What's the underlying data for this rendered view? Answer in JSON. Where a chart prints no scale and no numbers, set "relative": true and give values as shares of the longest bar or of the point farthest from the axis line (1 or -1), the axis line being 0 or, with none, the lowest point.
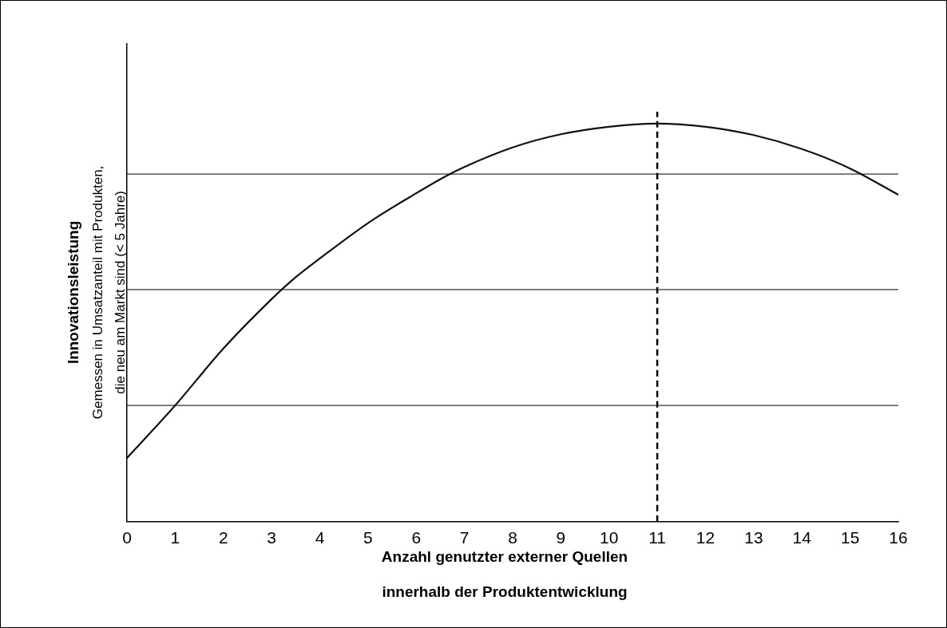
{
  "chart_data": {
    "type": "line",
    "relative": true,
    "xlabel": "Anzahl genutzter externer Quellen\ninnerhalb der Produktentwicklung",
    "ylabel": "Innovationsleistung\nGemessen in Umsatzanteil mit Produkten,\ndie neu am Markt sind (< 5 Jahre)",
    "xlim": [
      0,
      16
    ],
    "xticks": [
      0,
      1,
      2,
      3,
      4,
      5,
      6,
      7,
      8,
      9,
      10,
      11,
      12,
      13,
      14,
      15,
      16
    ],
    "grid": false,
    "legend": false,
    "marker": "none",
    "line_style": "solid",
    "series": [
      {
        "color": "#111111",
        "x": [
          0,
          1,
          2,
          3,
          3.5,
          4,
          5,
          6,
          6.6,
          7,
          8,
          9,
          10,
          11,
          12,
          13,
          14,
          15,
          16
        ],
        "values": [
          0.16,
          0.292,
          0.435,
          0.559,
          0.614,
          0.661,
          0.75,
          0.825,
          0.867,
          0.891,
          0.94,
          0.973,
          0.992,
          1,
          0.992,
          0.971,
          0.936,
          0.887,
          0.821
        ]
      }
    ],
    "ref_lines": [
      {
        "axis": "y",
        "value": 0.292,
        "color": "#333333",
        "line_style": "solid"
      },
      {
        "axis": "y",
        "value": 0.583,
        "color": "#333333",
        "line_style": "solid"
      },
      {
        "axis": "y",
        "value": 0.873,
        "color": "#333333",
        "line_style": "solid"
      },
      {
        "axis": "x",
        "value": 11,
        "color": "#000000",
        "line_style": "dashed"
      }
    ]
  }
}
